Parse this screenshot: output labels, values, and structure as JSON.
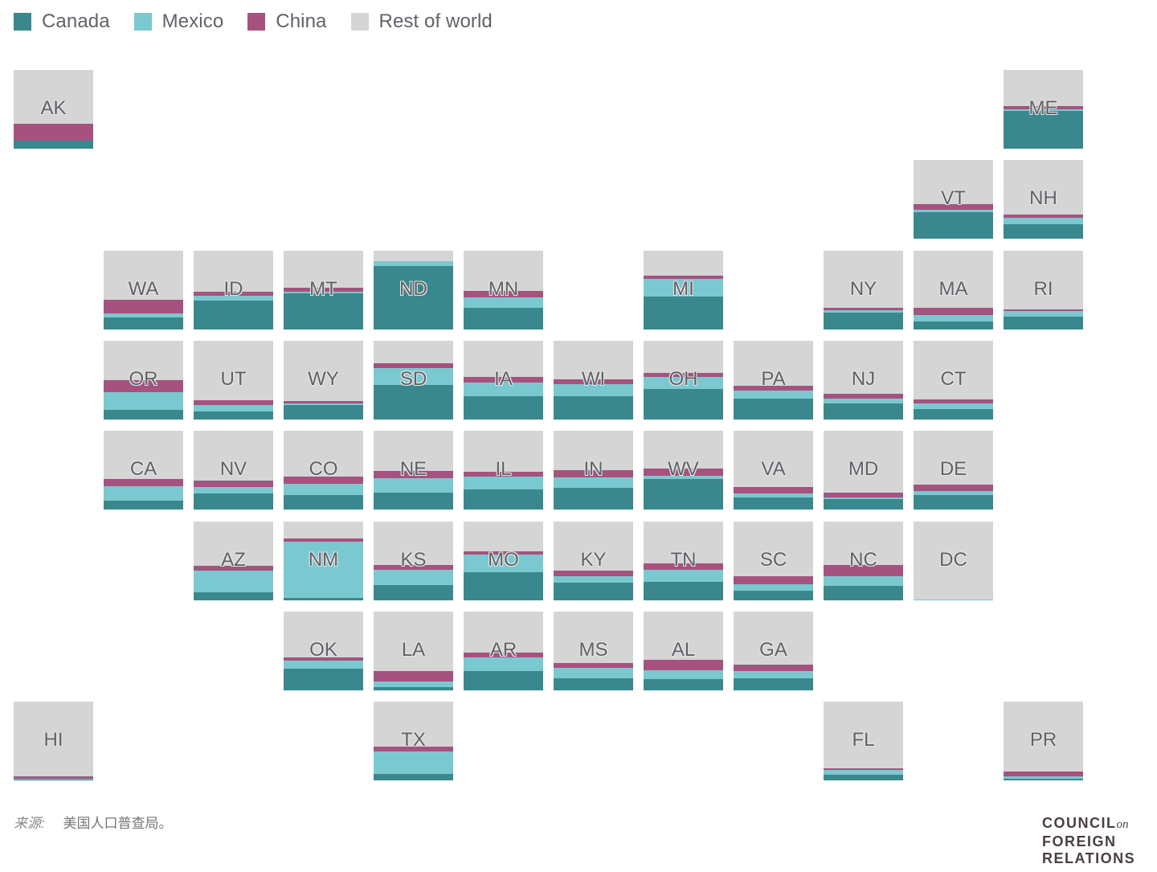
{
  "colors": {
    "canada": "#3a888d",
    "mexico": "#7ac9d0",
    "china": "#a5537e",
    "rest": "#d5d5d5"
  },
  "legend": [
    {
      "key": "canada",
      "label": "Canada",
      "color": "#3a888d"
    },
    {
      "key": "mexico",
      "label": "Mexico",
      "color": "#7ac9d0"
    },
    {
      "key": "china",
      "label": "China",
      "color": "#a5537e"
    },
    {
      "key": "rest",
      "label": "Rest of world",
      "color": "#d5d5d5"
    }
  ],
  "chart_data": {
    "type": "tile-map-stacked",
    "title": "",
    "series": [
      "Canada",
      "Mexico",
      "China",
      "Rest of world"
    ],
    "unit": "share of imports (%)",
    "states": [
      {
        "state": "AK",
        "row": 0,
        "col": 0,
        "canada": 10,
        "mexico": 0,
        "china": 22
      },
      {
        "state": "ME",
        "row": 0,
        "col": 11,
        "canada": 48,
        "mexico": 2,
        "china": 4
      },
      {
        "state": "VT",
        "row": 1,
        "col": 10,
        "canada": 34,
        "mexico": 3,
        "china": 7
      },
      {
        "state": "NH",
        "row": 1,
        "col": 11,
        "canada": 18,
        "mexico": 9,
        "china": 4
      },
      {
        "state": "WA",
        "row": 2,
        "col": 1,
        "canada": 15,
        "mexico": 5,
        "china": 18
      },
      {
        "state": "ID",
        "row": 2,
        "col": 2,
        "canada": 37,
        "mexico": 6,
        "china": 5
      },
      {
        "state": "MT",
        "row": 2,
        "col": 3,
        "canada": 46,
        "mexico": 2,
        "china": 5
      },
      {
        "state": "ND",
        "row": 2,
        "col": 4,
        "canada": 81,
        "mexico": 6,
        "china": 0
      },
      {
        "state": "MN",
        "row": 2,
        "col": 5,
        "canada": 28,
        "mexico": 13,
        "china": 8
      },
      {
        "state": "MI",
        "row": 2,
        "col": 7,
        "canada": 42,
        "mexico": 22,
        "china": 4
      },
      {
        "state": "NY",
        "row": 2,
        "col": 9,
        "canada": 21,
        "mexico": 3,
        "china": 4
      },
      {
        "state": "MA",
        "row": 2,
        "col": 10,
        "canada": 10,
        "mexico": 8,
        "china": 10
      },
      {
        "state": "RI",
        "row": 2,
        "col": 11,
        "canada": 16,
        "mexico": 7,
        "china": 3
      },
      {
        "state": "OR",
        "row": 3,
        "col": 1,
        "canada": 12,
        "mexico": 23,
        "china": 15
      },
      {
        "state": "UT",
        "row": 3,
        "col": 2,
        "canada": 10,
        "mexico": 8,
        "china": 7
      },
      {
        "state": "WY",
        "row": 3,
        "col": 3,
        "canada": 18,
        "mexico": 2,
        "china": 4
      },
      {
        "state": "SD",
        "row": 3,
        "col": 4,
        "canada": 44,
        "mexico": 21,
        "china": 6
      },
      {
        "state": "IA",
        "row": 3,
        "col": 5,
        "canada": 30,
        "mexico": 17,
        "china": 7
      },
      {
        "state": "WI",
        "row": 3,
        "col": 6,
        "canada": 30,
        "mexico": 15,
        "china": 6
      },
      {
        "state": "OH",
        "row": 3,
        "col": 7,
        "canada": 39,
        "mexico": 15,
        "china": 5
      },
      {
        "state": "PA",
        "row": 3,
        "col": 8,
        "canada": 27,
        "mexico": 10,
        "china": 6
      },
      {
        "state": "NJ",
        "row": 3,
        "col": 9,
        "canada": 20,
        "mexico": 7,
        "china": 6
      },
      {
        "state": "CT",
        "row": 3,
        "col": 10,
        "canada": 13,
        "mexico": 7,
        "china": 6
      },
      {
        "state": "CA",
        "row": 4,
        "col": 1,
        "canada": 11,
        "mexico": 19,
        "china": 9
      },
      {
        "state": "NV",
        "row": 4,
        "col": 2,
        "canada": 20,
        "mexico": 9,
        "china": 8
      },
      {
        "state": "CO",
        "row": 4,
        "col": 3,
        "canada": 18,
        "mexico": 15,
        "china": 9
      },
      {
        "state": "NE",
        "row": 4,
        "col": 4,
        "canada": 21,
        "mexico": 19,
        "china": 9
      },
      {
        "state": "IL",
        "row": 4,
        "col": 5,
        "canada": 26,
        "mexico": 16,
        "china": 6
      },
      {
        "state": "IN",
        "row": 4,
        "col": 6,
        "canada": 28,
        "mexico": 13,
        "china": 9
      },
      {
        "state": "WV",
        "row": 4,
        "col": 7,
        "canada": 39,
        "mexico": 4,
        "china": 9
      },
      {
        "state": "VA",
        "row": 4,
        "col": 8,
        "canada": 15,
        "mexico": 5,
        "china": 9
      },
      {
        "state": "MD",
        "row": 4,
        "col": 9,
        "canada": 13,
        "mexico": 2,
        "china": 6
      },
      {
        "state": "DE",
        "row": 4,
        "col": 10,
        "canada": 18,
        "mexico": 5,
        "china": 9
      },
      {
        "state": "AZ",
        "row": 5,
        "col": 2,
        "canada": 10,
        "mexico": 28,
        "china": 6
      },
      {
        "state": "NM",
        "row": 5,
        "col": 3,
        "canada": 3,
        "mexico": 71,
        "china": 5
      },
      {
        "state": "KS",
        "row": 5,
        "col": 4,
        "canada": 19,
        "mexico": 20,
        "china": 6
      },
      {
        "state": "MO",
        "row": 5,
        "col": 5,
        "canada": 36,
        "mexico": 22,
        "china": 4
      },
      {
        "state": "KY",
        "row": 5,
        "col": 6,
        "canada": 22,
        "mexico": 9,
        "china": 7
      },
      {
        "state": "TN",
        "row": 5,
        "col": 7,
        "canada": 23,
        "mexico": 16,
        "china": 8
      },
      {
        "state": "SC",
        "row": 5,
        "col": 8,
        "canada": 12,
        "mexico": 8,
        "china": 11
      },
      {
        "state": "NC",
        "row": 5,
        "col": 9,
        "canada": 18,
        "mexico": 13,
        "china": 14
      },
      {
        "state": "DC",
        "row": 5,
        "col": 10,
        "canada": 0,
        "mexico": 1,
        "china": 0
      },
      {
        "state": "OK",
        "row": 6,
        "col": 3,
        "canada": 28,
        "mexico": 10,
        "china": 4
      },
      {
        "state": "LA",
        "row": 6,
        "col": 4,
        "canada": 4,
        "mexico": 7,
        "china": 14
      },
      {
        "state": "AR",
        "row": 6,
        "col": 5,
        "canada": 25,
        "mexico": 17,
        "china": 6
      },
      {
        "state": "MS",
        "row": 6,
        "col": 6,
        "canada": 15,
        "mexico": 14,
        "china": 6
      },
      {
        "state": "AL",
        "row": 6,
        "col": 7,
        "canada": 14,
        "mexico": 12,
        "china": 13
      },
      {
        "state": "GA",
        "row": 6,
        "col": 8,
        "canada": 15,
        "mexico": 10,
        "china": 8
      },
      {
        "state": "HI",
        "row": 7,
        "col": 0,
        "canada": 1,
        "mexico": 1,
        "china": 3
      },
      {
        "state": "TX",
        "row": 7,
        "col": 4,
        "canada": 8,
        "mexico": 29,
        "china": 6
      },
      {
        "state": "FL",
        "row": 7,
        "col": 9,
        "canada": 7,
        "mexico": 6,
        "china": 2
      },
      {
        "state": "PR",
        "row": 7,
        "col": 11,
        "canada": 2,
        "mexico": 3,
        "china": 6
      }
    ]
  },
  "source": {
    "label": "来源:",
    "text": "美国人口普查局。"
  },
  "logo": {
    "line1": "COUNCIL",
    "line1_suffix": "on",
    "line2": "FOREIGN",
    "line3": "RELATIONS"
  }
}
